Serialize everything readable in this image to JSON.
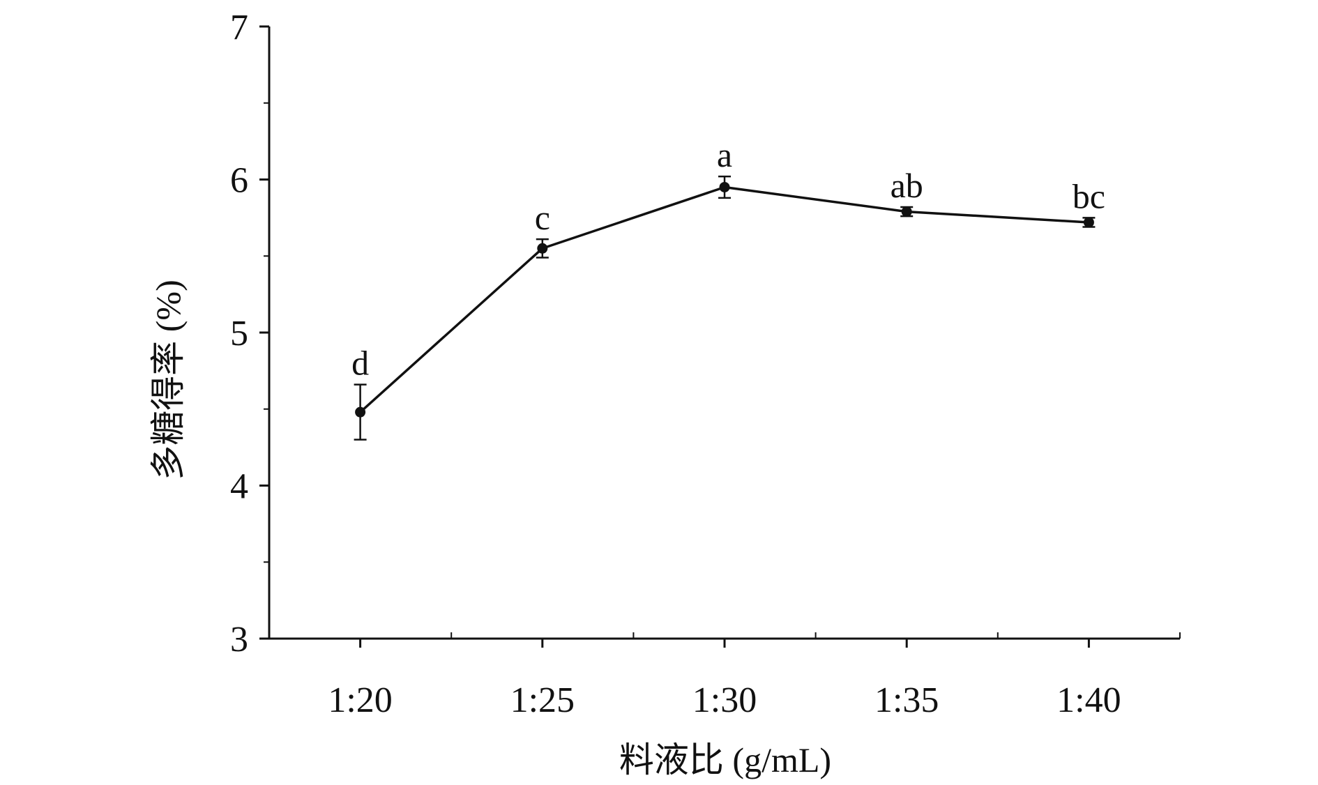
{
  "chart_data": {
    "type": "line",
    "title": "",
    "xlabel": "料液比 (g/mL)",
    "ylabel": "多糖得率 (%)",
    "categories": [
      "1:20",
      "1:25",
      "1:30",
      "1:35",
      "1:40"
    ],
    "series": [
      {
        "values": [
          4.48,
          5.55,
          5.95,
          5.79,
          5.72
        ],
        "error": [
          0.18,
          0.06,
          0.07,
          0.03,
          0.03
        ],
        "labels": [
          "d",
          "c",
          "a",
          "ab",
          "bc"
        ]
      }
    ],
    "ylim": [
      3,
      7
    ],
    "yticks": [
      "3",
      "4",
      "5",
      "6",
      "7"
    ],
    "grid": false,
    "legend": "none",
    "colors": {
      "line": "#111111",
      "axis": "#111111"
    }
  }
}
